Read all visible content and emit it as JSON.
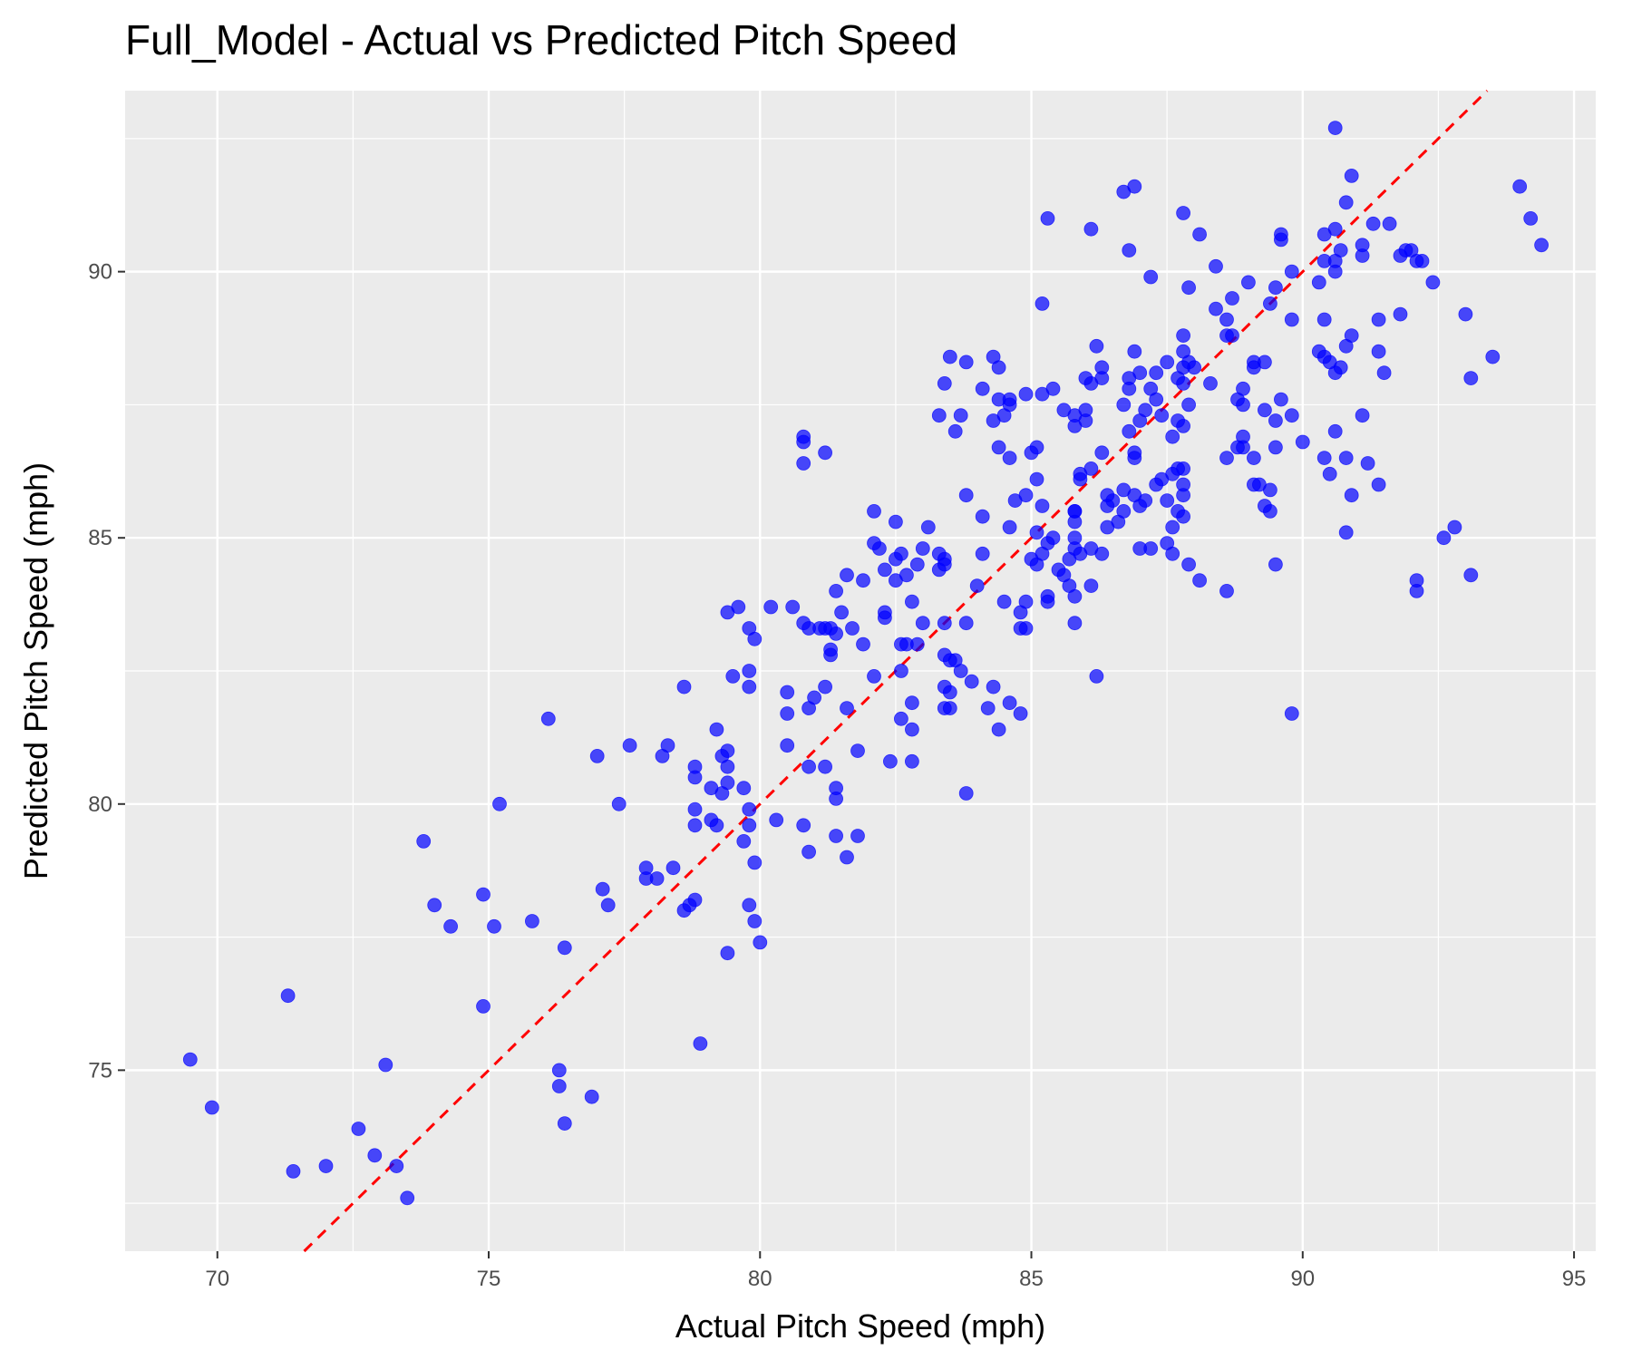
{
  "chart_data": {
    "type": "scatter",
    "title": "Full_Model - Actual vs Predicted Pitch Speed",
    "xlabel": "Actual Pitch Speed (mph)",
    "ylabel": "Predicted Pitch Speed (mph)",
    "xlim": [
      68.3,
      95.4
    ],
    "ylim": [
      71.6,
      93.4
    ],
    "x_ticks": [
      70,
      75,
      80,
      85,
      90,
      95
    ],
    "y_ticks": [
      75,
      80,
      85,
      90
    ],
    "grid": true,
    "panel_background": "#ebebeb",
    "point_color": "#0000ff",
    "point_opacity": 0.7,
    "reference_line": {
      "type": "identity",
      "color": "#ff0000",
      "style": "dashed"
    },
    "points": [
      [
        69.5,
        75.2
      ],
      [
        69.9,
        74.3
      ],
      [
        71.3,
        76.4
      ],
      [
        71.4,
        73.1
      ],
      [
        72.0,
        73.2
      ],
      [
        72.6,
        73.9
      ],
      [
        72.9,
        73.4
      ],
      [
        73.1,
        75.1
      ],
      [
        73.3,
        73.2
      ],
      [
        73.5,
        72.6
      ],
      [
        73.8,
        79.3
      ],
      [
        74.0,
        78.1
      ],
      [
        74.3,
        77.7
      ],
      [
        74.9,
        78.3
      ],
      [
        74.9,
        76.2
      ],
      [
        75.1,
        77.7
      ],
      [
        75.2,
        80.0
      ],
      [
        75.8,
        77.8
      ],
      [
        76.1,
        81.6
      ],
      [
        76.3,
        75.0
      ],
      [
        76.3,
        74.7
      ],
      [
        76.4,
        77.3
      ],
      [
        76.4,
        74.0
      ],
      [
        76.9,
        74.5
      ],
      [
        77.0,
        80.9
      ],
      [
        77.1,
        78.4
      ],
      [
        77.2,
        78.1
      ],
      [
        77.4,
        80.0
      ],
      [
        77.6,
        81.1
      ],
      [
        77.9,
        78.6
      ],
      [
        77.9,
        78.8
      ],
      [
        78.1,
        78.6
      ],
      [
        78.2,
        80.9
      ],
      [
        78.3,
        81.1
      ],
      [
        78.4,
        78.8
      ],
      [
        78.6,
        78.0
      ],
      [
        78.6,
        82.2
      ],
      [
        78.7,
        78.1
      ],
      [
        78.8,
        80.7
      ],
      [
        78.8,
        80.5
      ],
      [
        78.8,
        79.9
      ],
      [
        78.8,
        79.6
      ],
      [
        78.8,
        78.2
      ],
      [
        78.9,
        75.5
      ],
      [
        79.1,
        79.7
      ],
      [
        79.1,
        80.3
      ],
      [
        79.2,
        81.4
      ],
      [
        79.2,
        79.6
      ],
      [
        79.3,
        80.9
      ],
      [
        79.3,
        80.2
      ],
      [
        79.4,
        81.0
      ],
      [
        79.4,
        80.7
      ],
      [
        79.4,
        80.4
      ],
      [
        79.4,
        83.6
      ],
      [
        79.4,
        77.2
      ],
      [
        79.5,
        82.4
      ],
      [
        79.6,
        83.7
      ],
      [
        79.7,
        79.3
      ],
      [
        79.7,
        80.3
      ],
      [
        79.8,
        83.3
      ],
      [
        79.8,
        82.5
      ],
      [
        79.8,
        82.2
      ],
      [
        79.8,
        79.9
      ],
      [
        79.8,
        79.6
      ],
      [
        79.8,
        78.1
      ],
      [
        79.9,
        83.1
      ],
      [
        79.9,
        78.9
      ],
      [
        79.9,
        77.8
      ],
      [
        80.0,
        77.4
      ],
      [
        80.2,
        83.7
      ],
      [
        80.3,
        79.7
      ],
      [
        80.5,
        82.1
      ],
      [
        80.5,
        81.7
      ],
      [
        80.5,
        81.1
      ],
      [
        80.6,
        83.7
      ],
      [
        80.8,
        86.9
      ],
      [
        80.8,
        86.8
      ],
      [
        80.8,
        86.4
      ],
      [
        80.8,
        83.4
      ],
      [
        80.8,
        79.6
      ],
      [
        80.9,
        83.3
      ],
      [
        80.9,
        80.7
      ],
      [
        80.9,
        81.8
      ],
      [
        80.9,
        79.1
      ],
      [
        81.0,
        82.0
      ],
      [
        81.1,
        83.3
      ],
      [
        81.2,
        83.3
      ],
      [
        81.2,
        82.2
      ],
      [
        81.2,
        80.7
      ],
      [
        81.2,
        86.6
      ],
      [
        81.3,
        83.3
      ],
      [
        81.3,
        82.9
      ],
      [
        81.3,
        82.8
      ],
      [
        81.4,
        83.2
      ],
      [
        81.4,
        84.0
      ],
      [
        81.4,
        80.3
      ],
      [
        81.4,
        80.1
      ],
      [
        81.4,
        79.4
      ],
      [
        81.5,
        83.6
      ],
      [
        81.6,
        81.8
      ],
      [
        81.6,
        79.0
      ],
      [
        81.6,
        84.3
      ],
      [
        81.7,
        83.3
      ],
      [
        81.8,
        81.0
      ],
      [
        81.8,
        79.4
      ],
      [
        81.9,
        83.0
      ],
      [
        81.9,
        84.2
      ],
      [
        82.1,
        82.4
      ],
      [
        82.1,
        85.5
      ],
      [
        82.1,
        84.9
      ],
      [
        82.2,
        84.8
      ],
      [
        82.3,
        84.4
      ],
      [
        82.3,
        83.6
      ],
      [
        82.3,
        83.5
      ],
      [
        82.4,
        80.8
      ],
      [
        82.5,
        85.3
      ],
      [
        82.5,
        84.6
      ],
      [
        82.5,
        84.2
      ],
      [
        82.6,
        84.7
      ],
      [
        82.6,
        83.0
      ],
      [
        82.6,
        82.5
      ],
      [
        82.6,
        81.6
      ],
      [
        82.7,
        84.3
      ],
      [
        82.7,
        83.0
      ],
      [
        82.8,
        83.8
      ],
      [
        82.8,
        81.9
      ],
      [
        82.8,
        81.4
      ],
      [
        82.8,
        80.8
      ],
      [
        82.9,
        84.5
      ],
      [
        82.9,
        83.0
      ],
      [
        83.0,
        84.8
      ],
      [
        83.0,
        83.4
      ],
      [
        83.1,
        85.2
      ],
      [
        83.3,
        87.3
      ],
      [
        83.3,
        84.7
      ],
      [
        83.3,
        84.4
      ],
      [
        83.4,
        87.9
      ],
      [
        83.4,
        84.6
      ],
      [
        83.4,
        84.5
      ],
      [
        83.4,
        82.8
      ],
      [
        83.4,
        82.2
      ],
      [
        83.4,
        81.8
      ],
      [
        83.4,
        83.4
      ],
      [
        83.5,
        88.4
      ],
      [
        83.5,
        82.7
      ],
      [
        83.5,
        82.1
      ],
      [
        83.5,
        81.8
      ],
      [
        83.6,
        87.0
      ],
      [
        83.6,
        82.7
      ],
      [
        83.7,
        87.3
      ],
      [
        83.7,
        82.5
      ],
      [
        83.8,
        88.3
      ],
      [
        83.8,
        85.8
      ],
      [
        83.8,
        83.4
      ],
      [
        83.8,
        80.2
      ],
      [
        83.9,
        82.3
      ],
      [
        84.0,
        84.1
      ],
      [
        84.1,
        87.8
      ],
      [
        84.1,
        85.4
      ],
      [
        84.1,
        84.7
      ],
      [
        84.2,
        81.8
      ],
      [
        84.3,
        88.4
      ],
      [
        84.3,
        87.2
      ],
      [
        84.3,
        82.2
      ],
      [
        84.4,
        88.2
      ],
      [
        84.4,
        87.6
      ],
      [
        84.4,
        86.7
      ],
      [
        84.4,
        81.4
      ],
      [
        84.5,
        87.3
      ],
      [
        84.5,
        83.8
      ],
      [
        84.6,
        87.6
      ],
      [
        84.6,
        87.5
      ],
      [
        84.6,
        86.5
      ],
      [
        84.6,
        85.2
      ],
      [
        84.6,
        81.9
      ],
      [
        84.7,
        85.7
      ],
      [
        84.8,
        83.6
      ],
      [
        84.8,
        83.3
      ],
      [
        84.8,
        81.7
      ],
      [
        84.9,
        87.7
      ],
      [
        84.9,
        85.8
      ],
      [
        84.9,
        83.8
      ],
      [
        84.9,
        83.3
      ],
      [
        85.0,
        86.6
      ],
      [
        85.0,
        84.6
      ],
      [
        85.1,
        86.7
      ],
      [
        85.1,
        86.1
      ],
      [
        85.1,
        85.1
      ],
      [
        85.1,
        84.5
      ],
      [
        85.2,
        89.4
      ],
      [
        85.2,
        87.7
      ],
      [
        85.2,
        85.6
      ],
      [
        85.2,
        84.7
      ],
      [
        85.3,
        91.0
      ],
      [
        85.3,
        84.9
      ],
      [
        85.3,
        83.8
      ],
      [
        85.3,
        83.9
      ],
      [
        85.4,
        87.8
      ],
      [
        85.4,
        85.0
      ],
      [
        85.5,
        84.4
      ],
      [
        85.6,
        87.4
      ],
      [
        85.6,
        84.3
      ],
      [
        85.7,
        84.6
      ],
      [
        85.7,
        84.1
      ],
      [
        85.8,
        87.3
      ],
      [
        85.8,
        87.1
      ],
      [
        85.8,
        85.5
      ],
      [
        85.8,
        85.5
      ],
      [
        85.8,
        85.0
      ],
      [
        85.8,
        85.3
      ],
      [
        85.8,
        84.8
      ],
      [
        85.8,
        83.9
      ],
      [
        85.8,
        83.4
      ],
      [
        85.9,
        86.2
      ],
      [
        85.9,
        86.1
      ],
      [
        85.9,
        84.7
      ],
      [
        86.0,
        88.0
      ],
      [
        86.0,
        87.4
      ],
      [
        86.0,
        87.2
      ],
      [
        86.1,
        90.8
      ],
      [
        86.1,
        87.9
      ],
      [
        86.1,
        86.3
      ],
      [
        86.1,
        84.8
      ],
      [
        86.1,
        84.1
      ],
      [
        86.2,
        88.6
      ],
      [
        86.2,
        82.4
      ],
      [
        86.3,
        88.2
      ],
      [
        86.3,
        88.0
      ],
      [
        86.3,
        86.6
      ],
      [
        86.3,
        84.7
      ],
      [
        86.4,
        85.8
      ],
      [
        86.4,
        85.6
      ],
      [
        86.4,
        85.2
      ],
      [
        86.5,
        85.7
      ],
      [
        86.6,
        85.3
      ],
      [
        86.7,
        91.5
      ],
      [
        86.7,
        87.5
      ],
      [
        86.7,
        85.9
      ],
      [
        86.7,
        85.5
      ],
      [
        86.8,
        90.4
      ],
      [
        86.8,
        88.0
      ],
      [
        86.8,
        87.8
      ],
      [
        86.8,
        87.0
      ],
      [
        86.9,
        91.6
      ],
      [
        86.9,
        88.5
      ],
      [
        86.9,
        86.6
      ],
      [
        86.9,
        86.5
      ],
      [
        86.9,
        85.8
      ],
      [
        87.0,
        88.1
      ],
      [
        87.0,
        87.2
      ],
      [
        87.0,
        85.6
      ],
      [
        87.0,
        84.8
      ],
      [
        87.1,
        87.4
      ],
      [
        87.1,
        85.7
      ],
      [
        87.2,
        87.8
      ],
      [
        87.2,
        84.8
      ],
      [
        87.2,
        89.9
      ],
      [
        87.3,
        88.1
      ],
      [
        87.3,
        87.6
      ],
      [
        87.3,
        86.0
      ],
      [
        87.4,
        87.3
      ],
      [
        87.4,
        86.1
      ],
      [
        87.5,
        88.3
      ],
      [
        87.5,
        85.7
      ],
      [
        87.5,
        84.9
      ],
      [
        87.6,
        86.9
      ],
      [
        87.6,
        86.2
      ],
      [
        87.6,
        85.2
      ],
      [
        87.6,
        84.7
      ],
      [
        87.7,
        88.0
      ],
      [
        87.7,
        87.2
      ],
      [
        87.7,
        86.3
      ],
      [
        87.7,
        85.5
      ],
      [
        87.8,
        91.1
      ],
      [
        87.8,
        88.8
      ],
      [
        87.8,
        88.5
      ],
      [
        87.8,
        88.2
      ],
      [
        87.8,
        87.9
      ],
      [
        87.8,
        87.1
      ],
      [
        87.8,
        86.3
      ],
      [
        87.8,
        86.0
      ],
      [
        87.8,
        85.8
      ],
      [
        87.8,
        85.4
      ],
      [
        87.9,
        89.7
      ],
      [
        87.9,
        88.3
      ],
      [
        87.9,
        87.5
      ],
      [
        87.9,
        84.5
      ],
      [
        88.0,
        88.2
      ],
      [
        88.1,
        90.7
      ],
      [
        88.1,
        84.2
      ],
      [
        88.3,
        87.9
      ],
      [
        88.4,
        90.1
      ],
      [
        88.4,
        89.3
      ],
      [
        88.6,
        89.1
      ],
      [
        88.6,
        88.8
      ],
      [
        88.6,
        86.5
      ],
      [
        88.6,
        84.0
      ],
      [
        88.7,
        89.5
      ],
      [
        88.7,
        88.8
      ],
      [
        88.8,
        87.6
      ],
      [
        88.8,
        86.7
      ],
      [
        88.9,
        87.8
      ],
      [
        88.9,
        87.5
      ],
      [
        88.9,
        86.9
      ],
      [
        88.9,
        86.7
      ],
      [
        89.0,
        89.8
      ],
      [
        89.1,
        88.3
      ],
      [
        89.1,
        88.2
      ],
      [
        89.1,
        86.5
      ],
      [
        89.1,
        86.0
      ],
      [
        89.2,
        86.0
      ],
      [
        89.3,
        88.3
      ],
      [
        89.3,
        87.4
      ],
      [
        89.3,
        85.6
      ],
      [
        89.4,
        89.4
      ],
      [
        89.4,
        85.9
      ],
      [
        89.4,
        85.5
      ],
      [
        89.5,
        89.7
      ],
      [
        89.5,
        87.2
      ],
      [
        89.5,
        86.7
      ],
      [
        89.5,
        84.5
      ],
      [
        89.6,
        90.7
      ],
      [
        89.6,
        90.6
      ],
      [
        89.6,
        87.6
      ],
      [
        89.8,
        90.0
      ],
      [
        89.8,
        89.1
      ],
      [
        89.8,
        87.3
      ],
      [
        89.8,
        81.7
      ],
      [
        90.0,
        86.8
      ],
      [
        90.3,
        89.8
      ],
      [
        90.3,
        88.5
      ],
      [
        90.4,
        90.7
      ],
      [
        90.4,
        90.2
      ],
      [
        90.4,
        89.1
      ],
      [
        90.4,
        88.4
      ],
      [
        90.4,
        86.5
      ],
      [
        90.5,
        88.3
      ],
      [
        90.5,
        86.2
      ],
      [
        90.6,
        92.7
      ],
      [
        90.6,
        90.8
      ],
      [
        90.6,
        90.2
      ],
      [
        90.6,
        90.0
      ],
      [
        90.6,
        88.1
      ],
      [
        90.6,
        87.0
      ],
      [
        90.7,
        90.4
      ],
      [
        90.7,
        88.2
      ],
      [
        90.8,
        91.3
      ],
      [
        90.8,
        88.6
      ],
      [
        90.8,
        86.5
      ],
      [
        90.8,
        85.1
      ],
      [
        90.9,
        91.8
      ],
      [
        90.9,
        88.8
      ],
      [
        90.9,
        85.8
      ],
      [
        91.1,
        90.5
      ],
      [
        91.1,
        90.3
      ],
      [
        91.1,
        87.3
      ],
      [
        91.2,
        86.4
      ],
      [
        91.3,
        90.9
      ],
      [
        91.4,
        89.1
      ],
      [
        91.4,
        88.5
      ],
      [
        91.4,
        86.0
      ],
      [
        91.5,
        88.1
      ],
      [
        91.6,
        90.9
      ],
      [
        91.8,
        90.3
      ],
      [
        91.8,
        89.2
      ],
      [
        91.9,
        90.4
      ],
      [
        92.0,
        90.4
      ],
      [
        92.1,
        90.2
      ],
      [
        92.1,
        84.2
      ],
      [
        92.1,
        84.0
      ],
      [
        92.2,
        90.2
      ],
      [
        92.4,
        89.8
      ],
      [
        92.6,
        85.0
      ],
      [
        92.8,
        85.2
      ],
      [
        93.0,
        89.2
      ],
      [
        93.1,
        88.0
      ],
      [
        93.1,
        84.3
      ],
      [
        93.5,
        88.4
      ],
      [
        94.0,
        91.6
      ],
      [
        94.2,
        91.0
      ],
      [
        94.4,
        90.5
      ]
    ]
  }
}
